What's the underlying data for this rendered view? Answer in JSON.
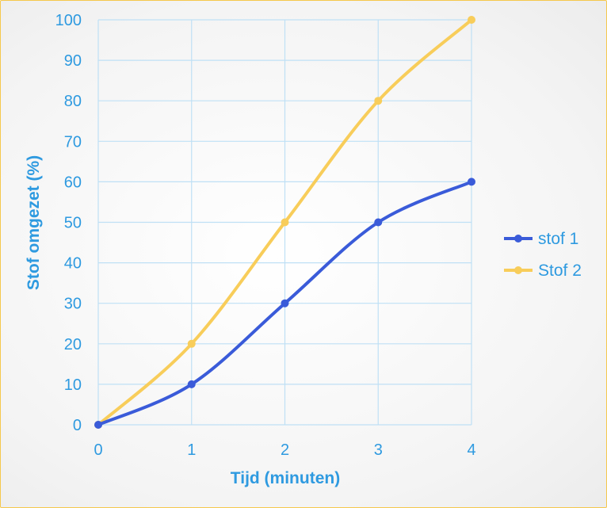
{
  "chart_data": {
    "type": "line",
    "title": "",
    "xlabel": "Tijd (minuten)",
    "ylabel": "Stof omgezet (%)",
    "x": [
      0,
      1,
      2,
      3,
      4
    ],
    "xlim": [
      0,
      4
    ],
    "ylim": [
      0,
      100
    ],
    "yticks": [
      0,
      10,
      20,
      30,
      40,
      50,
      60,
      70,
      80,
      90,
      100
    ],
    "grid": true,
    "smooth": true,
    "legend_position": "right",
    "series": [
      {
        "name": "stof 1",
        "color": "#3a5bd9",
        "values": [
          0,
          10,
          30,
          50,
          60
        ]
      },
      {
        "name": "Stof 2",
        "color": "#f8cd5a",
        "values": [
          0,
          20,
          50,
          80,
          100
        ]
      }
    ]
  },
  "colors": {
    "text": "#2e9ae0",
    "grid": "#bfe0f5",
    "border": "#f5c84c"
  }
}
